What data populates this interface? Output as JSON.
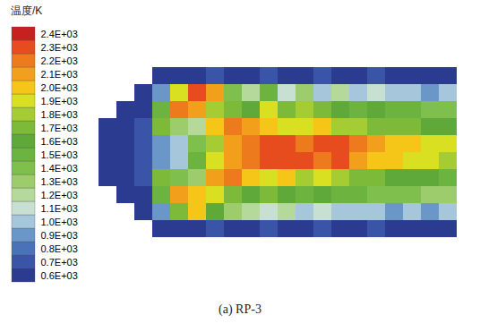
{
  "chart_data": {
    "type": "heatmap",
    "title": "(a) RP-3",
    "tick_labels": false,
    "cells": [
      [
        null,
        null,
        null,
        650,
        650,
        650,
        700,
        650,
        650,
        700,
        650,
        650,
        700,
        650,
        650,
        700,
        650,
        650,
        650,
        650
      ],
      [
        null,
        null,
        650,
        900,
        1900,
        2300,
        2100,
        1400,
        1200,
        1500,
        1100,
        1300,
        1000,
        1200,
        1000,
        1100,
        1000,
        1000,
        950,
        1000
      ],
      [
        null,
        650,
        650,
        1500,
        2200,
        2100,
        1800,
        1700,
        1600,
        1900,
        1700,
        1800,
        1700,
        1600,
        1500,
        1600,
        1500,
        1500,
        1400,
        1400
      ],
      [
        650,
        650,
        700,
        1700,
        1300,
        1200,
        2000,
        2200,
        2100,
        2000,
        1900,
        1900,
        2000,
        1800,
        1800,
        1700,
        1700,
        1700,
        1600,
        1600
      ],
      [
        650,
        650,
        700,
        900,
        1000,
        1400,
        1800,
        2100,
        2200,
        2300,
        2300,
        2200,
        2300,
        2300,
        2200,
        2100,
        2000,
        2000,
        1900,
        1900
      ],
      [
        650,
        650,
        700,
        900,
        1000,
        1500,
        1900,
        2100,
        2200,
        2300,
        2300,
        2300,
        2200,
        2300,
        2100,
        2000,
        2000,
        1900,
        1900,
        1800
      ],
      [
        650,
        650,
        700,
        1700,
        1400,
        1300,
        2100,
        2200,
        2000,
        1900,
        2000,
        1800,
        1900,
        1800,
        1700,
        1700,
        1600,
        1600,
        1600,
        1500
      ],
      [
        null,
        650,
        650,
        1500,
        2100,
        2000,
        1900,
        1700,
        1600,
        1700,
        1600,
        1500,
        1600,
        1500,
        1500,
        1400,
        1400,
        1400,
        1300,
        1300
      ],
      [
        null,
        null,
        650,
        900,
        1700,
        2000,
        1600,
        1300,
        1200,
        1100,
        1200,
        1000,
        1100,
        1000,
        1000,
        1000,
        950,
        1000,
        950,
        1000
      ],
      [
        null,
        null,
        null,
        650,
        650,
        650,
        700,
        650,
        650,
        700,
        650,
        650,
        700,
        650,
        650,
        700,
        650,
        650,
        650,
        650
      ]
    ],
    "colorbar": {
      "label": "温度/K",
      "ticks": [
        {
          "value": 600,
          "label": "0.6E+03"
        },
        {
          "value": 700,
          "label": "0.7E+03"
        },
        {
          "value": 800,
          "label": "0.8E+03"
        },
        {
          "value": 900,
          "label": "0.9E+03"
        },
        {
          "value": 1000,
          "label": "1.0E+03"
        },
        {
          "value": 1100,
          "label": "1.1E+03"
        },
        {
          "value": 1200,
          "label": "1.2E+03"
        },
        {
          "value": 1300,
          "label": "1.3E+03"
        },
        {
          "value": 1400,
          "label": "1.4E+03"
        },
        {
          "value": 1500,
          "label": "1.5E+03"
        },
        {
          "value": 1600,
          "label": "1.6E+03"
        },
        {
          "value": 1700,
          "label": "1.7E+03"
        },
        {
          "value": 1800,
          "label": "1.8E+03"
        },
        {
          "value": 1900,
          "label": "1.9E+03"
        },
        {
          "value": 2000,
          "label": "2.0E+03"
        },
        {
          "value": 2100,
          "label": "2.1E+03"
        },
        {
          "value": 2200,
          "label": "2.2E+03"
        },
        {
          "value": 2300,
          "label": "2.3E+03"
        },
        {
          "value": 2400,
          "label": "2.4E+03"
        }
      ],
      "colors": [
        "#2b3b8f",
        "#3a55a8",
        "#4a72b8",
        "#6a96c8",
        "#a6c6dc",
        "#c8e0d2",
        "#b5d99a",
        "#9ccc6c",
        "#7fbf4e",
        "#6db33f",
        "#5fa83a",
        "#7dba3a",
        "#a6cc34",
        "#d9e021",
        "#f5c518",
        "#f2a01c",
        "#ee7a1e",
        "#e74c1e",
        "#c8201e"
      ]
    }
  }
}
